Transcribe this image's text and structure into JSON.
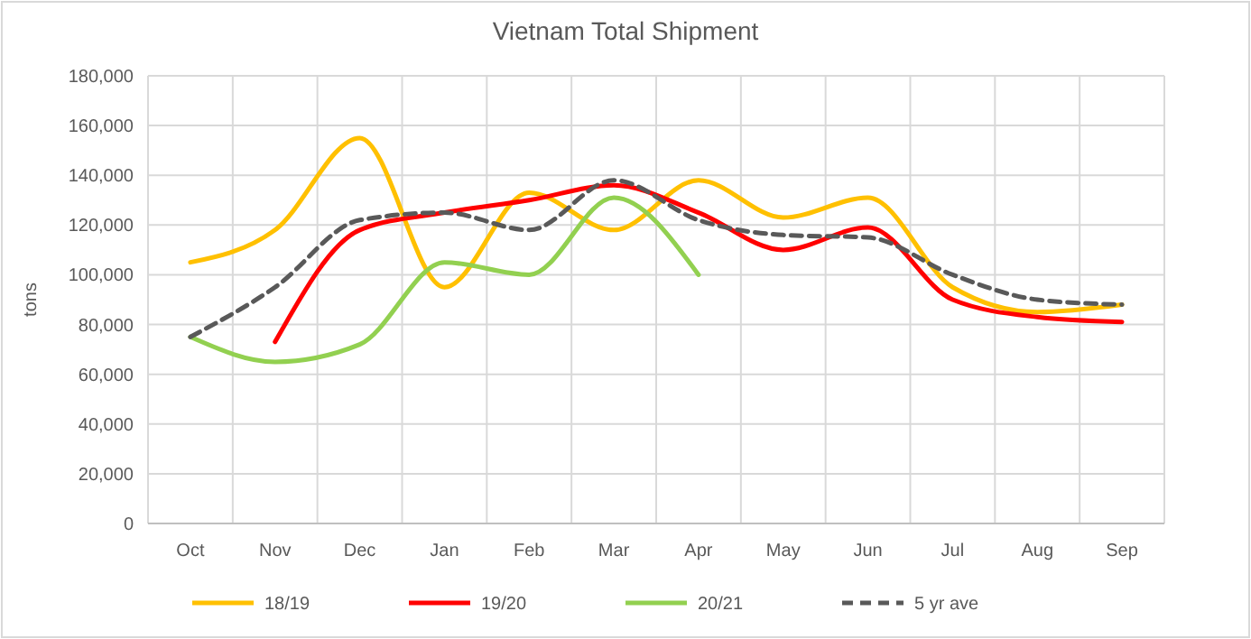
{
  "chart_data": {
    "type": "line",
    "title": "Vietnam Total Shipment",
    "ylabel": "tons",
    "categories": [
      "Oct",
      "Nov",
      "Dec",
      "Jan",
      "Feb",
      "Mar",
      "Apr",
      "May",
      "Jun",
      "Jul",
      "Aug",
      "Sep"
    ],
    "series": [
      {
        "name": "18/19",
        "color": "#ffc000",
        "values": [
          105000,
          118000,
          155000,
          95000,
          133000,
          118000,
          138000,
          123000,
          131000,
          95000,
          85000,
          88000
        ]
      },
      {
        "name": "19/20",
        "color": "#ff0000",
        "values": [
          null,
          73000,
          118000,
          125000,
          130000,
          136000,
          125000,
          110000,
          119000,
          90000,
          83000,
          81000
        ]
      },
      {
        "name": "20/21",
        "color": "#92d050",
        "values": [
          75000,
          65000,
          72000,
          105000,
          100000,
          131000,
          100000,
          null,
          null,
          null,
          null,
          null
        ]
      },
      {
        "name": "5 yr ave",
        "color": "#595959",
        "line_style": "dashed",
        "values": [
          75000,
          95000,
          122000,
          125000,
          118000,
          138000,
          122000,
          116000,
          115000,
          100000,
          90000,
          88000
        ]
      }
    ],
    "ylim": [
      0,
      180000
    ],
    "yticks": [
      {
        "value": 0,
        "label": "0"
      },
      {
        "value": 20000,
        "label": "20,000"
      },
      {
        "value": 40000,
        "label": "40,000"
      },
      {
        "value": 60000,
        "label": "60,000"
      },
      {
        "value": 80000,
        "label": "80,000"
      },
      {
        "value": 100000,
        "label": "100,000"
      },
      {
        "value": 120000,
        "label": "120,000"
      },
      {
        "value": 140000,
        "label": "140,000"
      },
      {
        "value": 160000,
        "label": "160,000"
      },
      {
        "value": 180000,
        "label": "180,000"
      }
    ],
    "grid": true,
    "legend": "bottom",
    "marker": "none"
  }
}
